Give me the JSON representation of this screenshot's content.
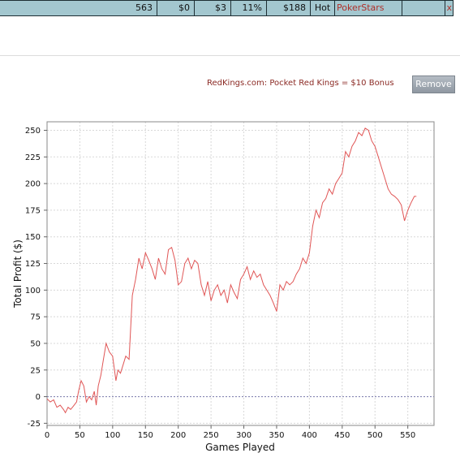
{
  "stats_row": {
    "cells": [
      "",
      "563",
      "$0",
      "$3",
      "11%",
      "$188",
      "Hot",
      "PokerStars",
      "",
      "x"
    ]
  },
  "promo": {
    "text": "RedKings.com: Pocket Red Kings = $10 Bonus",
    "button_label": "Remove"
  },
  "colors": {
    "row_bg": "#a3c7cf",
    "line": "#e05555",
    "zero_line": "#7777aa",
    "grid": "#d8d8d8"
  },
  "chart_data": {
    "type": "line",
    "title": "",
    "xlabel": "Games Played",
    "ylabel": "Total Profit ($)",
    "xlim": [
      0,
      590
    ],
    "ylim": [
      -27,
      258
    ],
    "xticks": [
      0,
      50,
      100,
      150,
      200,
      250,
      300,
      350,
      400,
      450,
      500,
      550
    ],
    "yticks": [
      -25,
      0,
      25,
      50,
      75,
      100,
      125,
      150,
      175,
      200,
      225,
      250
    ],
    "grid": true,
    "reference_line": 0,
    "series": [
      {
        "x": [
          0,
          5,
          10,
          15,
          20,
          25,
          28,
          32,
          36,
          40,
          45,
          48,
          52,
          56,
          60,
          64,
          68,
          72,
          75,
          78,
          82,
          86,
          90,
          95,
          100,
          105,
          108,
          112,
          116,
          120,
          125,
          130,
          135,
          140,
          145,
          150,
          155,
          160,
          165,
          170,
          175,
          180,
          185,
          190,
          195,
          200,
          205,
          210,
          215,
          220,
          225,
          230,
          235,
          240,
          245,
          250,
          255,
          260,
          265,
          270,
          275,
          280,
          285,
          290,
          295,
          300,
          305,
          310,
          315,
          320,
          325,
          330,
          335,
          340,
          345,
          350,
          355,
          360,
          365,
          370,
          375,
          380,
          385,
          390,
          395,
          400,
          405,
          410,
          415,
          420,
          425,
          430,
          435,
          440,
          445,
          450,
          455,
          460,
          465,
          470,
          475,
          480,
          485,
          490,
          495,
          500,
          505,
          510,
          515,
          520,
          525,
          530,
          535,
          540,
          545,
          550,
          555,
          560,
          563
        ],
        "y": [
          -2,
          -5,
          -3,
          -10,
          -8,
          -12,
          -15,
          -10,
          -12,
          -9,
          -5,
          5,
          15,
          10,
          -5,
          0,
          -3,
          5,
          -8,
          10,
          20,
          35,
          50,
          42,
          38,
          15,
          25,
          22,
          30,
          38,
          35,
          95,
          110,
          130,
          120,
          135,
          128,
          120,
          110,
          130,
          120,
          115,
          138,
          140,
          128,
          105,
          108,
          125,
          130,
          120,
          128,
          125,
          105,
          95,
          108,
          90,
          100,
          105,
          95,
          100,
          88,
          105,
          98,
          92,
          110,
          115,
          122,
          110,
          118,
          112,
          115,
          105,
          100,
          95,
          88,
          80,
          105,
          100,
          108,
          105,
          108,
          115,
          120,
          130,
          125,
          135,
          160,
          175,
          168,
          182,
          186,
          195,
          190,
          200,
          205,
          210,
          230,
          225,
          235,
          240,
          248,
          245,
          252,
          250,
          240,
          235,
          225,
          215,
          205,
          195,
          190,
          188,
          185,
          180,
          165,
          175,
          182,
          188,
          188
        ]
      }
    ]
  }
}
